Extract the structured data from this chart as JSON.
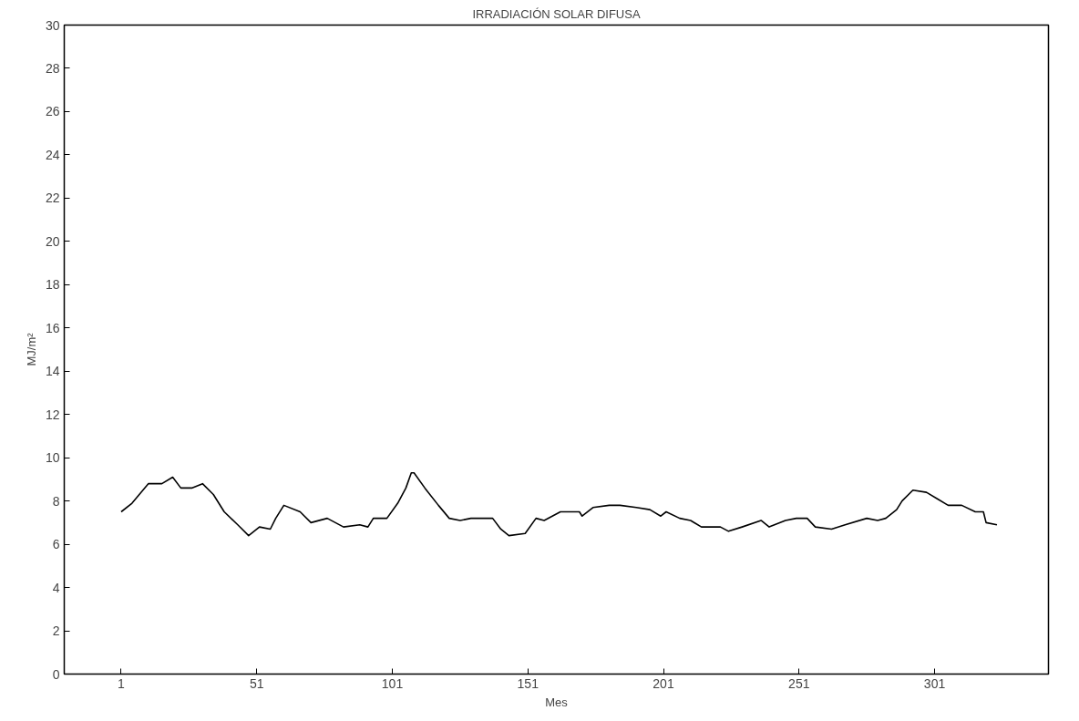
{
  "chart_data": {
    "type": "line",
    "title": "IRRADIACIÓN SOLAR DIFUSA",
    "xlabel": "Mes",
    "ylabel": "MJ/m²",
    "xlim": [
      -20,
      343
    ],
    "ylim": [
      0,
      30
    ],
    "xticks": [
      1,
      51,
      101,
      151,
      201,
      251,
      301
    ],
    "yticks": [
      0,
      2,
      4,
      6,
      8,
      10,
      12,
      14,
      16,
      18,
      20,
      22,
      24,
      26,
      28,
      30
    ],
    "grid": false,
    "marker": "none",
    "line_style": "solid",
    "series": [
      {
        "color": "#000000",
        "x": [
          1,
          5,
          11,
          16,
          20,
          23,
          27,
          31,
          35,
          39,
          44,
          48,
          52,
          56,
          58,
          61,
          67,
          71,
          77,
          83,
          89,
          92,
          94,
          99,
          103,
          106,
          108,
          109,
          113,
          118,
          122,
          126,
          130,
          138,
          141,
          144,
          150,
          154,
          157,
          163,
          170,
          171,
          175,
          181,
          185,
          191,
          196,
          200,
          202,
          207,
          211,
          215,
          219,
          222,
          225,
          230,
          237,
          240,
          246,
          250,
          254,
          257,
          263,
          268,
          276,
          280,
          283,
          287,
          289,
          293,
          298,
          302,
          306,
          311,
          316,
          319,
          320,
          324
        ],
        "values": [
          7.5,
          7.9,
          8.8,
          8.8,
          9.1,
          8.6,
          8.6,
          8.8,
          8.3,
          7.5,
          6.9,
          6.4,
          6.8,
          6.7,
          7.2,
          7.8,
          7.5,
          7.0,
          7.2,
          6.8,
          6.9,
          6.8,
          7.2,
          7.2,
          7.9,
          8.6,
          9.3,
          9.3,
          8.6,
          7.8,
          7.2,
          7.1,
          7.2,
          7.2,
          6.7,
          6.4,
          6.5,
          7.2,
          7.1,
          7.5,
          7.5,
          7.3,
          7.7,
          7.8,
          7.8,
          7.7,
          7.6,
          7.3,
          7.5,
          7.2,
          7.1,
          6.8,
          6.8,
          6.8,
          6.6,
          6.8,
          7.1,
          6.8,
          7.1,
          7.2,
          7.2,
          6.8,
          6.7,
          6.9,
          7.2,
          7.1,
          7.2,
          7.6,
          8.0,
          8.5,
          8.4,
          8.1,
          7.8,
          7.8,
          7.5,
          7.5,
          7.0,
          6.9
        ]
      }
    ]
  }
}
